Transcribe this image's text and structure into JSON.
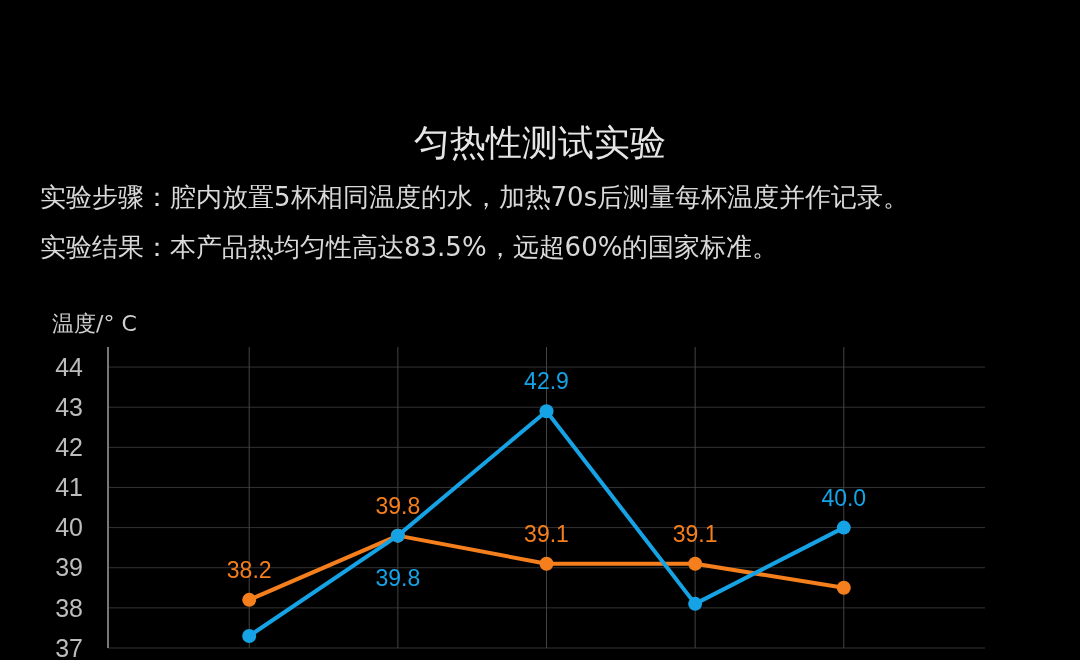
{
  "chart_data": {
    "type": "line",
    "title": "匀热性测试实验",
    "subtitle": "实验步骤：腔内放置5杯相同温度的水，加热70s后测量每杯温度并作记录。",
    "annotations": [
      "实验结果：本产品热均匀性高达83.5%，远超60%的国家标准。"
    ],
    "ylabel": "温度/° C",
    "categories": [
      null,
      null,
      null,
      null,
      null
    ],
    "series": [
      {
        "color": "#f47f1c",
        "values": [
          38.2,
          39.8,
          39.1,
          39.1,
          38.5
        ],
        "value_labels": [
          "38.2",
          "39.8",
          "39.1",
          "39.1",
          null
        ]
      },
      {
        "color": "#15a3e6",
        "values": [
          37.3,
          39.8,
          42.9,
          38.1,
          40.0
        ],
        "value_labels": [
          null,
          "39.8",
          "42.9",
          null,
          "40.0"
        ]
      }
    ],
    "ylim": [
      37,
      44.5
    ],
    "yticks": [
      37,
      38,
      39,
      40,
      41,
      42,
      43,
      44
    ],
    "grid": true,
    "marker": "circle",
    "line_style": "solid"
  }
}
